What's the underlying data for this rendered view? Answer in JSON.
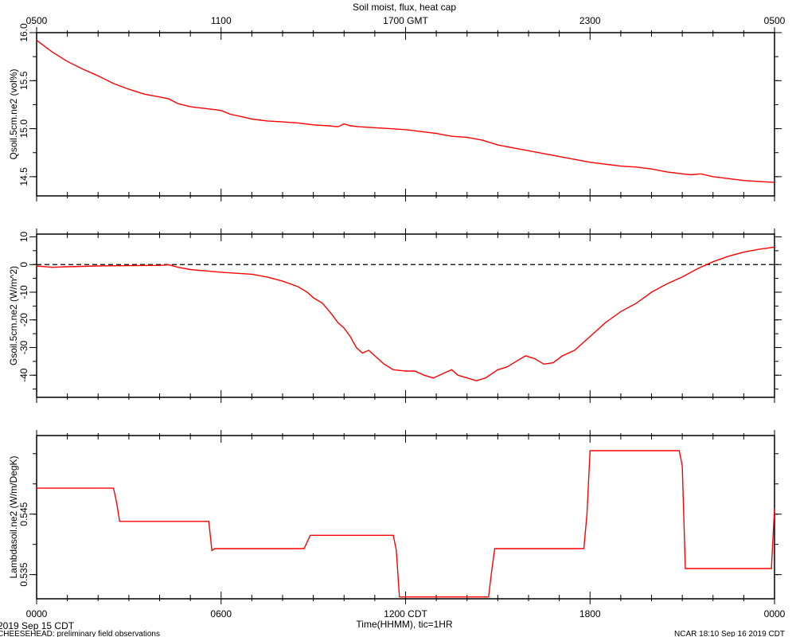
{
  "chart_data": {
    "title": "Soil moist, flux, heat cap",
    "type": "line",
    "top_axis": {
      "ticks": [
        "0500",
        "1100",
        "1700 GMT",
        "2300",
        "0500"
      ],
      "positions": [
        0,
        6,
        12,
        18,
        24
      ]
    },
    "bottom_axis": {
      "ticks": [
        "0000",
        "0600",
        "1200 CDT",
        "1800",
        "0000"
      ],
      "positions": [
        0,
        6,
        12,
        18,
        24
      ],
      "xlabel": "Time(HHMM), tic=1HR",
      "xlim": [
        0,
        24
      ]
    },
    "series_color": "#ff0000",
    "panels": [
      {
        "ylabel": "Qsoil.5cm.ne2 (vol%)",
        "ylim": [
          14.3,
          16.0
        ],
        "yticks": [
          14.5,
          15.0,
          15.5,
          16.0
        ],
        "ytick_labels": [
          "14.5",
          "15.0",
          "15.5",
          "16.0"
        ],
        "x": [
          0,
          0.5,
          1,
          1.5,
          2,
          2.5,
          3,
          3.5,
          4,
          4.3,
          4.6,
          5,
          5.2,
          5.5,
          6,
          6.3,
          6.6,
          7,
          7.5,
          8,
          8.5,
          9,
          9.5,
          9.8,
          10,
          10.2,
          10.5,
          11,
          11.5,
          12,
          12.5,
          13,
          13.5,
          14,
          14.5,
          15,
          15.5,
          16,
          16.5,
          17,
          17.5,
          18,
          18.5,
          19,
          19.5,
          20,
          20.5,
          21,
          21.3,
          21.6,
          22,
          22.5,
          23,
          23.5,
          24
        ],
        "y": [
          15.92,
          15.8,
          15.7,
          15.62,
          15.55,
          15.47,
          15.41,
          15.36,
          15.33,
          15.31,
          15.26,
          15.23,
          15.22,
          15.21,
          15.19,
          15.15,
          15.13,
          15.1,
          15.08,
          15.07,
          15.06,
          15.04,
          15.03,
          15.02,
          15.05,
          15.03,
          15.02,
          15.01,
          15.0,
          14.99,
          14.97,
          14.95,
          14.92,
          14.91,
          14.88,
          14.83,
          14.8,
          14.77,
          14.74,
          14.71,
          14.68,
          14.65,
          14.63,
          14.61,
          14.6,
          14.58,
          14.55,
          14.53,
          14.52,
          14.53,
          14.5,
          14.48,
          14.46,
          14.45,
          14.44
        ]
      },
      {
        "ylabel": "Gsoil.5cm.ne2 (W/m^2)",
        "ylim": [
          -48,
          11
        ],
        "yticks": [
          -40,
          -30,
          -20,
          -10,
          0,
          10
        ],
        "ytick_labels": [
          "-40",
          "-30",
          "-20",
          "-10",
          "0",
          "10"
        ],
        "reference_line": 0,
        "x": [
          0,
          0.5,
          1,
          2,
          3,
          4,
          4.3,
          4.6,
          5,
          5.5,
          6,
          7,
          7.5,
          8,
          8.5,
          8.8,
          9,
          9.3,
          9.6,
          9.8,
          10,
          10.2,
          10.4,
          10.6,
          10.8,
          11,
          11.3,
          11.6,
          12,
          12.3,
          12.6,
          12.9,
          13.1,
          13.3,
          13.5,
          13.7,
          14,
          14.3,
          14.6,
          15,
          15.3,
          15.6,
          15.9,
          16.2,
          16.5,
          16.8,
          17.1,
          17.5,
          18,
          18.5,
          19,
          19.5,
          20,
          20.5,
          21,
          21.5,
          22,
          22.5,
          23,
          23.5,
          24
        ],
        "y": [
          -0.5,
          -1,
          -0.8,
          -0.5,
          -0.4,
          -0.3,
          -0.1,
          -1,
          -1.8,
          -2.3,
          -2.8,
          -3.5,
          -4.5,
          -6,
          -8,
          -10,
          -12,
          -14,
          -18,
          -21,
          -23,
          -26,
          -30,
          -32,
          -31,
          -33,
          -36,
          -38,
          -38.5,
          -38.5,
          -40,
          -41,
          -40,
          -39,
          -38,
          -40,
          -41,
          -42,
          -41,
          -38,
          -37,
          -35,
          -33,
          -34,
          -36,
          -35.5,
          -33,
          -31,
          -26,
          -21,
          -17,
          -14,
          -10,
          -7,
          -4.5,
          -1.5,
          1,
          3,
          4.5,
          5.5,
          6.3
        ]
      },
      {
        "ylabel": "Lambdasoil.ne2 (W/m/DegK)",
        "ylim": [
          0.531,
          0.558
        ],
        "yticks": [
          0.535,
          0.545
        ],
        "ytick_labels": [
          "0.535",
          "0.545"
        ],
        "x": [
          0,
          2.5,
          2.6,
          2.7,
          5.6,
          5.7,
          5.8,
          8.7,
          8.9,
          11.6,
          11.7,
          11.8,
          14.7,
          14.8,
          14.9,
          17.8,
          17.9,
          18.0,
          20.9,
          21.0,
          21.1,
          23.9,
          24.0
        ],
        "y": [
          0.5493,
          0.5493,
          0.547,
          0.5438,
          0.5438,
          0.539,
          0.5393,
          0.5393,
          0.5415,
          0.5415,
          0.539,
          0.5313,
          0.5313,
          0.5355,
          0.5393,
          0.5393,
          0.545,
          0.5555,
          0.5555,
          0.553,
          0.536,
          0.536,
          0.546
        ]
      }
    ]
  },
  "footer": {
    "date_label": "2019 Sep 15 CDT",
    "project_label": "CHEESEHEAD: preliminary field observations",
    "credit_label": "NCAR 18:10 Sep 16 2019 CDT"
  }
}
